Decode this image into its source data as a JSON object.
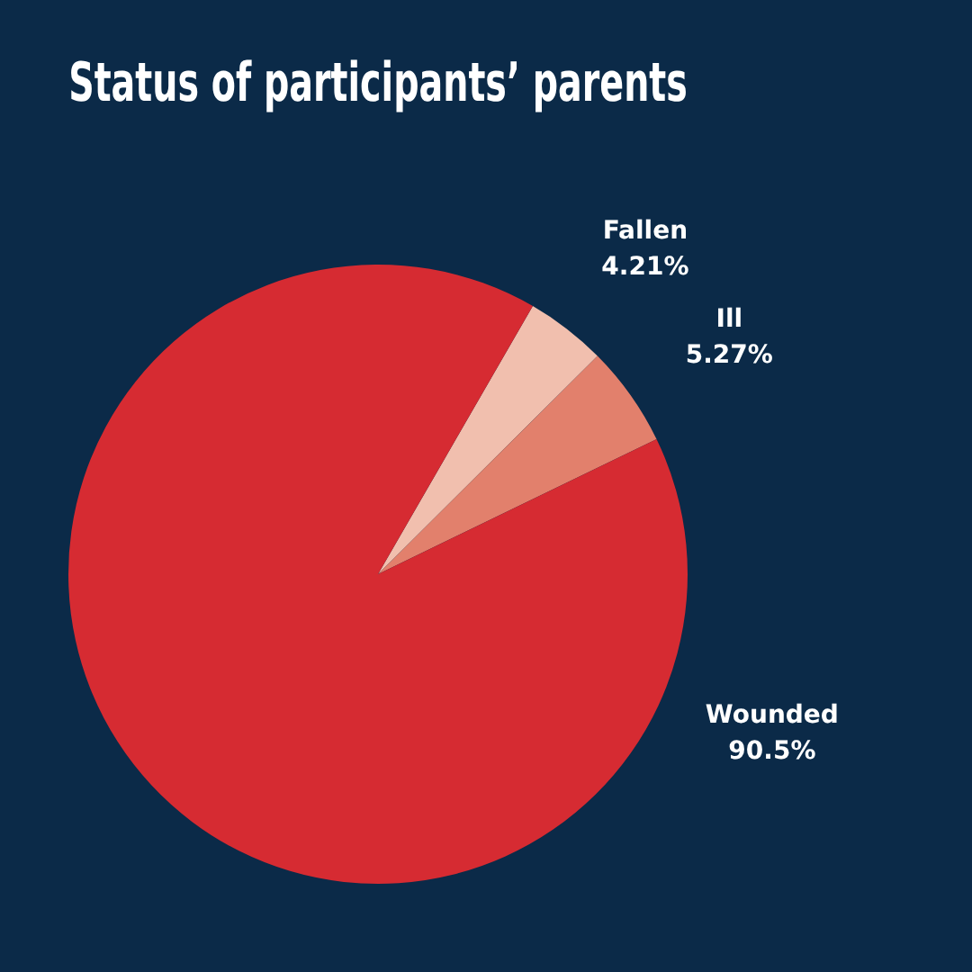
{
  "chart_data": {
    "type": "pie",
    "title": "Status of participants’ parents",
    "categories": [
      "Fallen",
      "Ill",
      "Wounded"
    ],
    "values": [
      4.21,
      5.27,
      90.5
    ],
    "colors": [
      "#f1bfae",
      "#e2806c",
      "#d62b32"
    ],
    "value_labels": [
      "4.21%",
      "5.27%",
      "90.5%"
    ],
    "legend": false
  }
}
